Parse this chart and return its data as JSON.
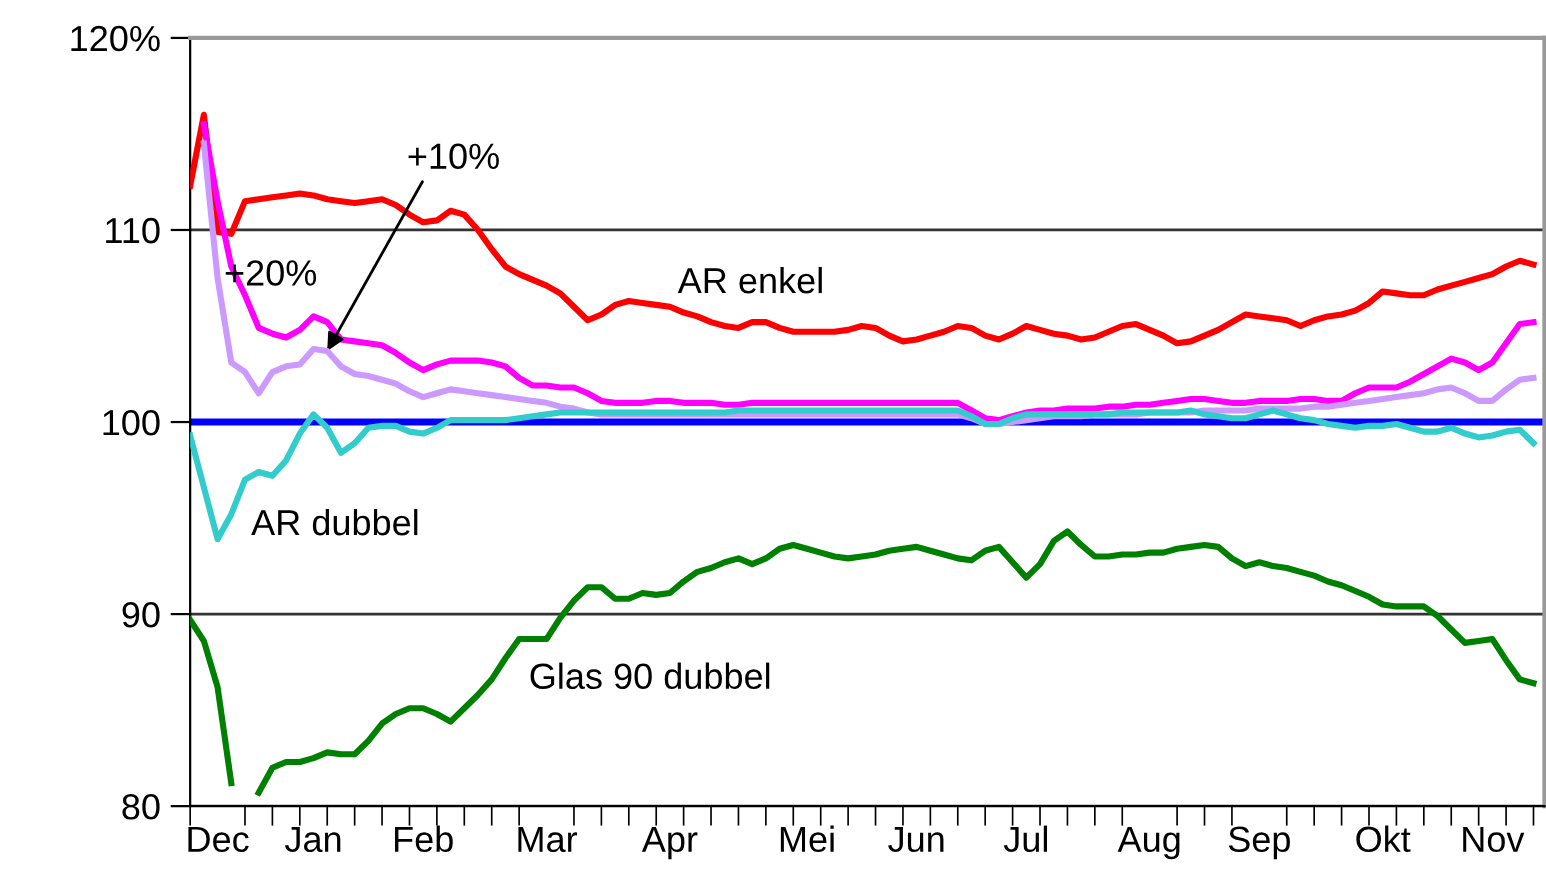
{
  "chart_data": {
    "type": "line",
    "categories": [
      null,
      null,
      "Dec",
      null,
      null,
      null,
      null,
      null,
      null,
      "Jan",
      null,
      null,
      null,
      null,
      null,
      null,
      null,
      "Feb",
      null,
      null,
      null,
      null,
      null,
      null,
      null,
      null,
      "Mar",
      null,
      null,
      null,
      null,
      null,
      null,
      null,
      null,
      "Apr",
      null,
      null,
      null,
      null,
      null,
      null,
      null,
      null,
      null,
      "Mei",
      null,
      null,
      null,
      null,
      null,
      null,
      null,
      "Jun",
      null,
      null,
      null,
      null,
      null,
      null,
      null,
      "Jul",
      null,
      null,
      null,
      null,
      null,
      null,
      null,
      null,
      "Aug",
      null,
      null,
      null,
      null,
      null,
      null,
      null,
      "Sep",
      null,
      null,
      null,
      null,
      null,
      null,
      null,
      null,
      "Okt",
      null,
      null,
      null,
      null,
      null,
      null,
      null,
      "Nov",
      null,
      null,
      null
    ],
    "ylim": [
      80,
      120
    ],
    "yticks": [
      80,
      90,
      100,
      110,
      {
        "value": 120,
        "label": "120%"
      }
    ],
    "grid": "y",
    "legend": false,
    "marker": "none",
    "line_style": "solid",
    "ref_lines": [
      {
        "axis": "y",
        "value": 100,
        "label": null,
        "color": "#0000ff"
      }
    ],
    "series": [
      {
        "name": "AR enkel",
        "color": "#ff0000",
        "values": [
          112.3,
          116.0,
          109.9,
          109.8,
          111.5,
          111.6,
          111.7,
          111.8,
          111.9,
          111.8,
          111.6,
          111.5,
          111.4,
          111.5,
          111.6,
          111.3,
          110.8,
          110.4,
          110.5,
          111.0,
          110.8,
          110.0,
          109.0,
          108.1,
          107.7,
          107.4,
          107.1,
          106.7,
          106.0,
          105.3,
          105.6,
          106.1,
          106.3,
          106.2,
          106.1,
          106.0,
          105.7,
          105.5,
          105.2,
          105.0,
          104.9,
          105.2,
          105.2,
          104.9,
          104.7,
          104.7,
          104.7,
          104.7,
          104.8,
          105.0,
          104.9,
          104.5,
          104.2,
          104.3,
          104.5,
          104.7,
          105.0,
          104.9,
          104.5,
          104.3,
          104.6,
          105.0,
          104.8,
          104.6,
          104.5,
          104.3,
          104.4,
          104.7,
          105.0,
          105.1,
          104.8,
          104.5,
          104.1,
          104.2,
          104.5,
          104.8,
          105.2,
          105.6,
          105.5,
          105.4,
          105.3,
          105.0,
          105.3,
          105.5,
          105.6,
          105.8,
          106.2,
          106.8,
          106.7,
          106.6,
          106.6,
          106.9,
          107.1,
          107.3,
          107.5,
          107.7,
          108.1,
          108.4,
          108.2
        ]
      },
      {
        "name": "+10%",
        "color": "#ff00ff",
        "values": [
          null,
          115.5,
          111.5,
          108.1,
          106.6,
          104.9,
          104.6,
          104.4,
          104.8,
          105.5,
          105.2,
          104.3,
          104.2,
          104.1,
          104.0,
          103.6,
          103.1,
          102.7,
          103.0,
          103.2,
          103.2,
          103.2,
          103.1,
          102.9,
          102.3,
          101.9,
          101.9,
          101.8,
          101.8,
          101.5,
          101.1,
          101.0,
          101.0,
          101.0,
          101.1,
          101.1,
          101.0,
          101.0,
          101.0,
          100.9,
          100.9,
          101.0,
          101.0,
          101.0,
          101.0,
          101.0,
          101.0,
          101.0,
          101.0,
          101.0,
          101.0,
          101.0,
          101.0,
          101.0,
          101.0,
          101.0,
          101.0,
          100.6,
          100.2,
          100.1,
          100.3,
          100.5,
          100.6,
          100.6,
          100.7,
          100.7,
          100.7,
          100.8,
          100.8,
          100.9,
          100.9,
          101.0,
          101.1,
          101.2,
          101.2,
          101.1,
          101.0,
          101.0,
          101.1,
          101.1,
          101.1,
          101.2,
          101.2,
          101.1,
          101.1,
          101.5,
          101.8,
          101.8,
          101.8,
          102.1,
          102.5,
          102.9,
          103.3,
          103.1,
          102.7,
          103.1,
          104.1,
          105.1,
          105.2
        ]
      },
      {
        "name": "+20%",
        "color": "#cc99ff",
        "values": [
          null,
          114.5,
          107.5,
          103.1,
          102.6,
          101.5,
          102.6,
          102.9,
          103.0,
          103.8,
          103.7,
          102.9,
          102.5,
          102.4,
          102.2,
          102.0,
          101.6,
          101.3,
          101.5,
          101.7,
          101.6,
          101.5,
          101.4,
          101.3,
          101.2,
          101.1,
          101.0,
          100.8,
          100.7,
          100.5,
          100.4,
          100.4,
          100.4,
          100.4,
          100.4,
          100.4,
          100.4,
          100.4,
          100.4,
          100.4,
          100.4,
          100.4,
          100.4,
          100.4,
          100.4,
          100.4,
          100.4,
          100.4,
          100.4,
          100.4,
          100.4,
          100.4,
          100.4,
          100.4,
          100.4,
          100.4,
          100.4,
          100.2,
          99.9,
          99.9,
          100.0,
          100.1,
          100.2,
          100.3,
          100.3,
          100.3,
          100.4,
          100.4,
          100.4,
          100.4,
          100.5,
          100.5,
          100.5,
          100.5,
          100.6,
          100.6,
          100.6,
          100.6,
          100.7,
          100.7,
          100.7,
          100.7,
          100.8,
          100.8,
          100.9,
          101.0,
          101.1,
          101.2,
          101.3,
          101.4,
          101.5,
          101.7,
          101.8,
          101.5,
          101.1,
          101.1,
          101.7,
          102.2,
          102.3
        ]
      },
      {
        "name": "AR dubbel",
        "color": "#33cccc",
        "values": [
          99.3,
          96.6,
          93.9,
          95.2,
          97.0,
          97.4,
          97.2,
          98.0,
          99.4,
          100.4,
          99.7,
          98.4,
          98.9,
          99.7,
          99.8,
          99.8,
          99.5,
          99.4,
          99.7,
          100.1,
          100.1,
          100.1,
          100.1,
          100.1,
          100.2,
          100.3,
          100.4,
          100.5,
          100.5,
          100.5,
          100.5,
          100.5,
          100.5,
          100.5,
          100.5,
          100.5,
          100.5,
          100.5,
          100.5,
          100.5,
          100.6,
          100.6,
          100.6,
          100.6,
          100.6,
          100.6,
          100.6,
          100.6,
          100.6,
          100.6,
          100.6,
          100.6,
          100.6,
          100.6,
          100.6,
          100.6,
          100.6,
          100.3,
          99.9,
          99.9,
          100.2,
          100.4,
          100.4,
          100.4,
          100.4,
          100.4,
          100.4,
          100.4,
          100.5,
          100.5,
          100.5,
          100.5,
          100.5,
          100.6,
          100.4,
          100.3,
          100.2,
          100.2,
          100.4,
          100.6,
          100.4,
          100.2,
          100.1,
          99.9,
          99.8,
          99.7,
          99.8,
          99.8,
          99.9,
          99.7,
          99.5,
          99.5,
          99.7,
          99.4,
          99.2,
          99.3,
          99.5,
          99.6,
          98.9
        ]
      },
      {
        "name": "Glas 90 dubbel",
        "color": "#008000",
        "values": [
          89.7,
          88.6,
          86.2,
          81.2,
          null,
          80.7,
          82.0,
          82.3,
          82.3,
          82.5,
          82.8,
          82.7,
          82.7,
          83.4,
          84.3,
          84.8,
          85.1,
          85.1,
          84.8,
          84.4,
          85.1,
          85.8,
          86.6,
          87.7,
          88.7,
          88.7,
          88.7,
          89.8,
          90.7,
          91.4,
          91.4,
          90.8,
          90.8,
          91.1,
          91.0,
          91.1,
          91.7,
          92.2,
          92.4,
          92.7,
          92.9,
          92.6,
          92.9,
          93.4,
          93.6,
          93.4,
          93.2,
          93.0,
          92.9,
          93.0,
          93.1,
          93.3,
          93.4,
          93.5,
          93.3,
          93.1,
          92.9,
          92.8,
          93.3,
          93.5,
          92.7,
          91.9,
          92.6,
          93.8,
          94.3,
          93.6,
          93.0,
          93.0,
          93.1,
          93.1,
          93.2,
          93.2,
          93.4,
          93.5,
          93.6,
          93.5,
          92.9,
          92.5,
          92.7,
          92.5,
          92.4,
          92.2,
          92.0,
          91.7,
          91.5,
          91.2,
          90.9,
          90.5,
          90.4,
          90.4,
          90.4,
          89.9,
          89.2,
          88.5,
          88.6,
          88.7,
          87.6,
          86.6,
          86.4
        ]
      }
    ]
  }
}
